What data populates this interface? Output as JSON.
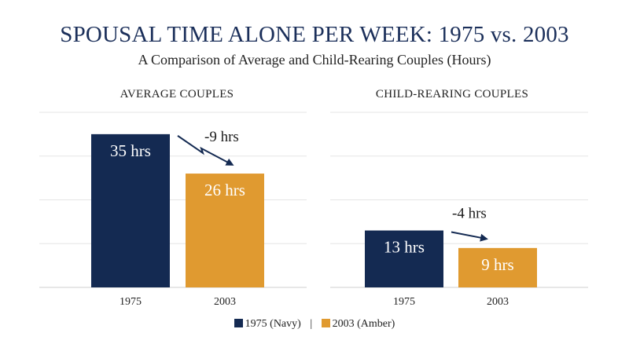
{
  "chart_data": [
    {
      "type": "bar",
      "title": "AVERAGE COUPLES",
      "categories": [
        "1975",
        "2003"
      ],
      "values": [
        35,
        26
      ],
      "value_labels": [
        "35 hrs",
        "26 hrs"
      ],
      "colors": [
        "#142a52",
        "#e09a30"
      ],
      "annotation": "-9 hrs",
      "ylim": [
        0,
        40
      ],
      "grid": true
    },
    {
      "type": "bar",
      "title": "CHILD-REARING COUPLES",
      "categories": [
        "1975",
        "2003"
      ],
      "values": [
        13,
        9
      ],
      "value_labels": [
        "13 hrs",
        "9 hrs"
      ],
      "colors": [
        "#142a52",
        "#e09a30"
      ],
      "annotation": "-4 hrs",
      "ylim": [
        0,
        40
      ],
      "grid": true
    }
  ],
  "header": {
    "title": "SPOUSAL TIME ALONE PER WEEK: 1975 vs. 2003",
    "subtitle": "A Comparison of Average and Child-Rearing Couples (Hours)"
  },
  "legend": {
    "items": [
      {
        "label": "1975 (Navy)",
        "color": "#142a52"
      },
      {
        "label": "2003 (Amber)",
        "color": "#e09a30"
      }
    ],
    "separator": "|"
  }
}
